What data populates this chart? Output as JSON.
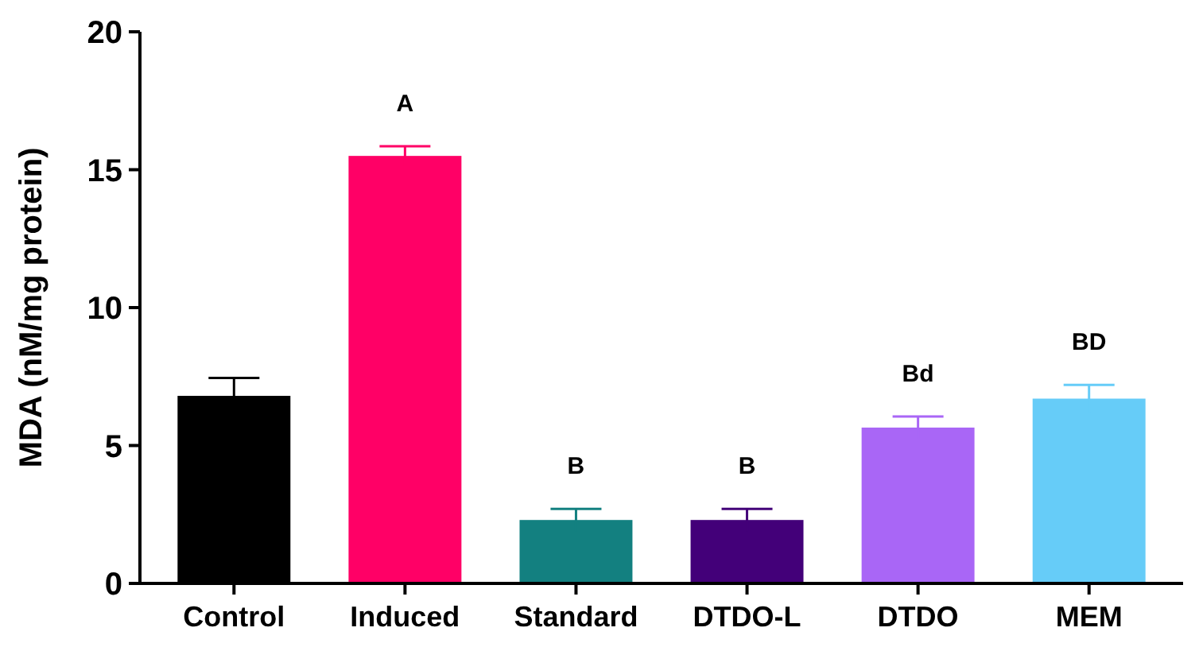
{
  "chart_data": {
    "type": "bar",
    "ylabel": "MDA (nM/mg protein)",
    "categories": [
      "Control",
      "Induced",
      "Standard",
      "DTDO-L",
      "DTDO",
      "MEM"
    ],
    "values": [
      6.8,
      15.5,
      2.3,
      2.3,
      5.65,
      6.7
    ],
    "errors": [
      0.65,
      0.35,
      0.4,
      0.4,
      0.4,
      0.5
    ],
    "value_labels": [
      null,
      "A",
      "B",
      "B",
      "Bd",
      "BD"
    ],
    "colors": [
      "#000000",
      "#ff0066",
      "#138080",
      "#430079",
      "#a966f6",
      "#66ccf8"
    ],
    "ylim": [
      0,
      20
    ],
    "yticks": [
      0,
      5,
      10,
      15,
      20
    ],
    "grid": false
  }
}
